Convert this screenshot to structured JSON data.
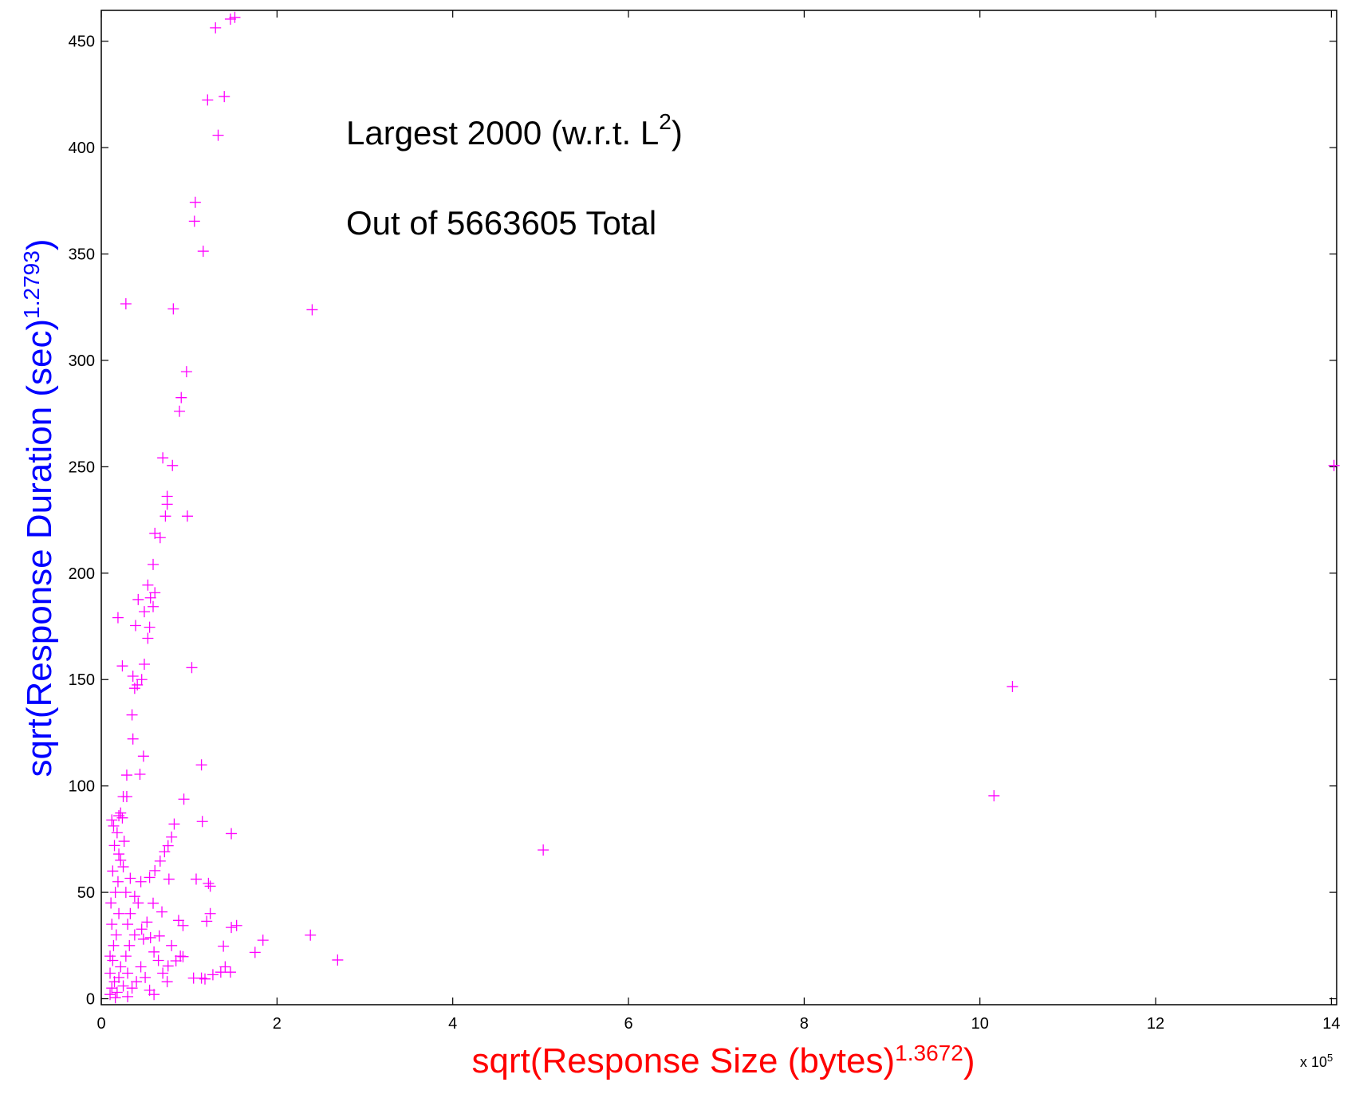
{
  "chart_data": {
    "type": "scatter",
    "annotations": [
      {
        "text": "Largest 2000 (w.r.t. L",
        "sup": "2",
        "tail": ")"
      },
      {
        "text": "Out of 5663605 Total"
      }
    ],
    "x_label": {
      "text": "sqrt(Response Size (bytes)",
      "sup": "1.3672",
      "tail": ")"
    },
    "y_label": {
      "text": "sqrt(Response Duration (sec)",
      "sup": "1.2793",
      "tail": ")"
    },
    "x_multiplier": {
      "text": "x 10",
      "sup": "5"
    },
    "color": "#ff00ff",
    "xlim": [
      0,
      14.06
    ],
    "xticks": [
      0,
      2,
      4,
      6,
      8,
      10,
      12,
      14
    ],
    "ylim": [
      -2.8,
      464.5
    ],
    "yticks": [
      0,
      50,
      100,
      150,
      200,
      250,
      300,
      350,
      400,
      450
    ],
    "x": [
      14.03,
      10.37,
      10.16,
      5.03,
      2.69,
      2.38,
      2.4,
      1.84,
      1.75,
      1.48,
      1.54,
      1.48,
      1.52,
      1.47,
      1.3,
      1.4,
      1.21,
      1.33,
      1.07,
      1.06,
      1.16,
      0.28,
      0.82,
      0.97,
      0.91,
      0.89,
      0.7,
      0.81,
      0.75,
      0.75,
      0.73,
      0.98,
      0.61,
      0.67,
      0.59,
      0.53,
      0.61,
      0.56,
      0.42,
      0.49,
      0.59,
      0.55,
      0.39,
      0.53,
      0.19,
      1.03,
      0.24,
      0.49,
      0.36,
      0.46,
      0.41,
      0.38,
      0.35,
      0.36,
      0.48,
      1.14,
      0.29,
      0.44,
      0.25,
      0.29,
      0.94,
      1.15,
      0.83,
      0.8,
      0.76,
      0.72,
      0.67,
      0.61,
      0.55,
      0.77,
      1.08,
      1.22,
      1.24,
      0.33,
      0.22,
      0.14,
      0.22,
      0.26,
      0.38,
      0.88,
      0.93,
      1.2,
      1.24,
      1.39,
      1.41,
      1.47,
      1.36,
      1.27,
      1.14,
      1.18,
      1.05,
      0.93,
      0.85,
      0.76,
      0.66,
      0.56,
      0.46,
      0.69,
      0.59,
      0.1,
      0.12,
      0.15,
      0.1,
      0.13,
      0.18,
      0.2,
      0.22,
      0.25,
      0.14,
      0.17,
      0.12,
      0.2,
      0.11,
      0.16,
      0.19,
      0.13,
      0.2,
      0.15,
      0.18,
      0.12,
      0.2,
      0.24,
      0.1,
      0.28,
      0.3,
      0.32,
      0.35,
      0.4,
      0.45,
      0.5,
      0.55,
      0.6,
      0.65,
      0.7,
      0.3,
      0.38,
      0.42,
      0.28,
      0.25,
      0.33,
      0.48,
      0.52,
      0.16,
      0.3,
      0.6,
      0.8,
      0.9,
      0.75,
      0.45
    ],
    "values": [
      250.6,
      146.7,
      95.4,
      69.9,
      18.2,
      29.9,
      323.8,
      27.5,
      21.8,
      33.5,
      34.4,
      77.6,
      461.2,
      460.4,
      456.3,
      424,
      422.4,
      405.8,
      374.3,
      365.4,
      351.3,
      326.6,
      324.2,
      294.7,
      282.5,
      276.1,
      254.2,
      250.6,
      236.1,
      232.4,
      226.8,
      226.8,
      218.7,
      216.7,
      204.1,
      194.4,
      190.8,
      188.4,
      187.6,
      181.9,
      184.3,
      174.6,
      175.4,
      169.4,
      179.1,
      155.6,
      156.4,
      157.2,
      151.6,
      150.0,
      147.5,
      145.9,
      133.4,
      122.1,
      114.0,
      109.9,
      105.1,
      105.5,
      95.0,
      95.0,
      93.8,
      83.3,
      82.1,
      76.0,
      71.9,
      69.1,
      64.7,
      60.2,
      57.0,
      56.2,
      56.2,
      54.2,
      52.9,
      56.6,
      65.1,
      81.2,
      87.3,
      74.0,
      48.1,
      36.8,
      34.4,
      36.4,
      40.0,
      24.7,
      15.0,
      12.5,
      12.5,
      11.3,
      9.7,
      9.3,
      9.7,
      19.8,
      17.8,
      15.4,
      29.5,
      28.7,
      32.7,
      40.8,
      44.9,
      2,
      5,
      8,
      12,
      18,
      3,
      10,
      15,
      6,
      25,
      30,
      35,
      40,
      45,
      50,
      55,
      60,
      68,
      72,
      78,
      84,
      86,
      85,
      20,
      20,
      12,
      25,
      5,
      8,
      15,
      10,
      4,
      22,
      18,
      12,
      35,
      30,
      45,
      50,
      62,
      40,
      28,
      36,
      0.5,
      1,
      2,
      25,
      20,
      8,
      55
    ]
  }
}
